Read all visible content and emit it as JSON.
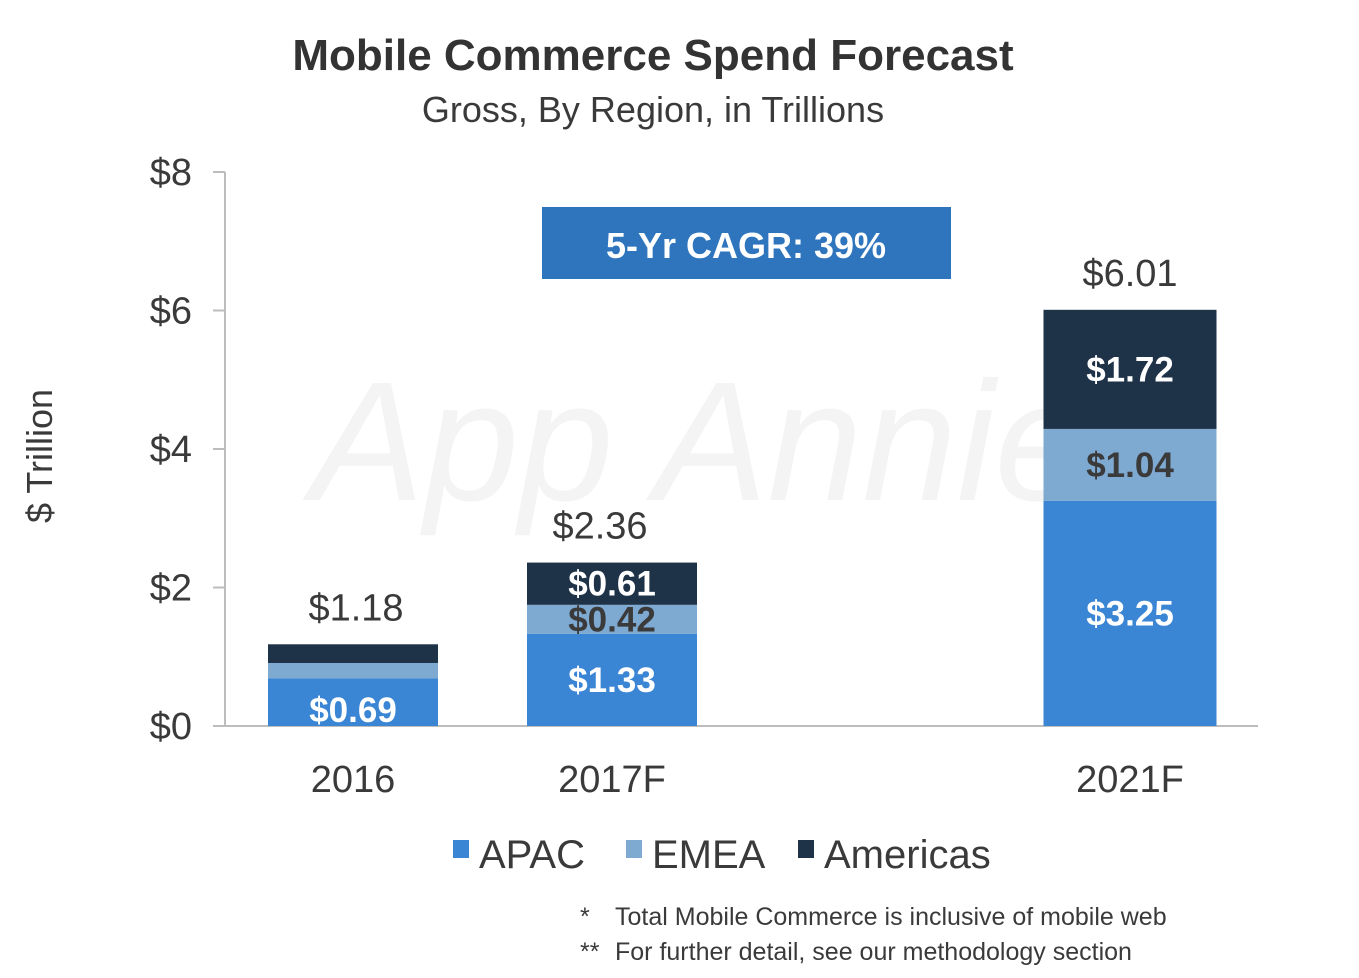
{
  "chart_data": {
    "type": "bar",
    "stacked": true,
    "title": "Mobile Commerce Spend Forecast",
    "subtitle": "Gross, By Region, in Trillions",
    "ylabel": "$ Trillion",
    "xlabel": "",
    "ylim": [
      0,
      8
    ],
    "yticks": [
      0,
      2,
      4,
      6,
      8
    ],
    "ytick_labels": [
      "$0",
      "$2",
      "$4",
      "$6",
      "$8"
    ],
    "categories": [
      "2016",
      "2017F",
      "2021F"
    ],
    "series": [
      {
        "name": "APAC",
        "color": "#3a86d4",
        "values": [
          0.69,
          1.33,
          3.25
        ],
        "labels": [
          "$0.69",
          "$1.33",
          "$3.25"
        ],
        "label_color": "#ffffff"
      },
      {
        "name": "EMEA",
        "color": "#7ea9d1",
        "values": [
          0.22,
          0.42,
          1.04
        ],
        "labels": [
          "",
          "$0.42",
          "$1.04"
        ],
        "label_color": "#3a3a3a"
      },
      {
        "name": "Americas",
        "color": "#1e3248",
        "values": [
          0.27,
          0.61,
          1.72
        ],
        "labels": [
          "",
          "$0.61",
          "$1.72"
        ],
        "label_color": "#ffffff"
      }
    ],
    "totals": [
      1.18,
      2.36,
      6.01
    ],
    "total_labels": [
      "$1.18",
      "$2.36",
      "$6.01"
    ],
    "annotation": "5-Yr CAGR: 39%",
    "annotation_color": "#2e75bd",
    "legend_position": "bottom",
    "grid": false
  },
  "watermark": "App Annie",
  "footnotes": [
    {
      "mark": "*",
      "text": "Total Mobile Commerce is inclusive of mobile web"
    },
    {
      "mark": "**",
      "text": "For further detail, see our methodology section"
    }
  ]
}
